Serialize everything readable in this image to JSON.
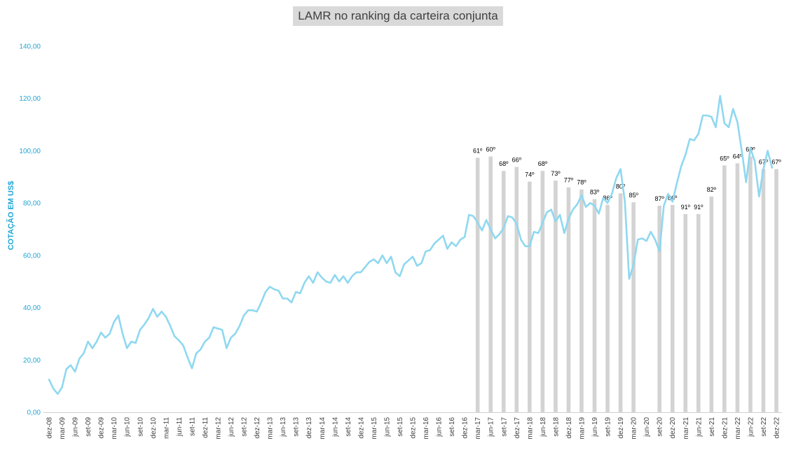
{
  "chart_data": {
    "type": "bar+line",
    "title": "LAMR no ranking da carteira conjunta",
    "ylabel": "COTAÇÃO EM US$",
    "xlabel": "",
    "ylim": [
      0,
      140
    ],
    "yticks": [
      "0,00",
      "20,00",
      "40,00",
      "60,00",
      "80,00",
      "100,00",
      "120,00",
      "140,00"
    ],
    "ytick_values": [
      0,
      20,
      40,
      60,
      80,
      100,
      120,
      140
    ],
    "x_start_month": "dez-08",
    "x_tick_labels": [
      "dez-08",
      "mar-09",
      "jun-09",
      "set-09",
      "dez-09",
      "mar-10",
      "jun-10",
      "set-10",
      "dez-10",
      "mar-11",
      "jun-11",
      "set-11",
      "dez-11",
      "mar-12",
      "jun-12",
      "set-12",
      "dez-12",
      "mar-13",
      "jun-13",
      "set-13",
      "dez-13",
      "mar-14",
      "jun-14",
      "set-14",
      "dez-14",
      "mar-15",
      "jun-15",
      "set-15",
      "dez-15",
      "mar-16",
      "jun-16",
      "set-16",
      "dez-16",
      "mar-17",
      "jun-17",
      "set-17",
      "dez-17",
      "mar-18",
      "jun-18",
      "set-18",
      "dez-18",
      "mar-19",
      "jun-19",
      "set-19",
      "dez-19",
      "mar-20",
      "jun-20",
      "set-20",
      "dez-20",
      "mar-21",
      "jun-21",
      "set-21",
      "dez-21",
      "mar-22",
      "jun-22",
      "set-22",
      "dez-22"
    ],
    "line_color": "#8fd8f0",
    "bar_color": "#d3d3d3",
    "line_values": [
      12.5,
      9.0,
      7.0,
      9.5,
      16.5,
      18.0,
      15.5,
      20.5,
      22.5,
      27.0,
      24.5,
      27.0,
      30.5,
      28.5,
      30.0,
      34.5,
      37.0,
      30.0,
      24.5,
      27.0,
      26.5,
      31.5,
      33.5,
      36.0,
      39.5,
      36.5,
      38.5,
      36.5,
      33.0,
      29.0,
      27.5,
      25.5,
      21.0,
      16.8,
      22.5,
      24.0,
      27.0,
      28.5,
      32.5,
      32.0,
      31.5,
      24.5,
      28.5,
      30.0,
      33.0,
      37.0,
      39.0,
      39.0,
      38.5,
      42.0,
      46.0,
      48.0,
      47.0,
      46.5,
      43.5,
      43.5,
      42.0,
      46.0,
      45.5,
      49.5,
      52.0,
      49.5,
      53.5,
      51.5,
      50.0,
      49.5,
      52.5,
      50.0,
      52.0,
      49.5,
      52.0,
      53.5,
      53.5,
      55.5,
      57.5,
      58.5,
      57.0,
      60.0,
      57.0,
      59.5,
      53.5,
      52.0,
      56.5,
      58.0,
      59.5,
      56.0,
      57.0,
      61.5,
      62.0,
      64.5,
      66.0,
      67.5,
      62.5,
      65.0,
      63.5,
      66.0,
      67.0,
      75.5,
      75.0,
      72.5,
      69.5,
      73.5,
      70.0,
      66.5,
      68.0,
      70.5,
      75.0,
      74.5,
      72.0,
      66.0,
      63.5,
      63.5,
      69.0,
      68.5,
      72.5,
      76.5,
      77.5,
      73.0,
      75.5,
      68.5,
      74.0,
      77.5,
      79.5,
      83.0,
      78.5,
      80.0,
      79.0,
      76.0,
      82.0,
      80.0,
      83.5,
      89.5,
      93.0,
      80.5,
      51.0,
      56.5,
      66.0,
      66.5,
      65.5,
      69.0,
      66.0,
      61.5,
      79.0,
      83.5,
      80.5,
      87.5,
      94.0,
      98.5,
      104.5,
      104.0,
      106.5,
      113.5,
      113.5,
      113.0,
      109.0,
      121.0,
      110.5,
      109.0,
      116.0,
      111.0,
      100.0,
      88.0,
      101.0,
      96.0,
      82.5,
      93.0,
      100.0,
      93.5
    ],
    "bars": [
      {
        "month": "mar-17",
        "value": 97.3,
        "label": "61º"
      },
      {
        "month": "jun-17",
        "value": 97.8,
        "label": "60º"
      },
      {
        "month": "set-17",
        "value": 92.3,
        "label": "68º"
      },
      {
        "month": "dez-17",
        "value": 93.8,
        "label": "66º"
      },
      {
        "month": "mar-18",
        "value": 88.2,
        "label": "74º"
      },
      {
        "month": "jun-18",
        "value": 92.3,
        "label": "68º"
      },
      {
        "month": "set-18",
        "value": 88.6,
        "label": "73º"
      },
      {
        "month": "dez-18",
        "value": 86.0,
        "label": "77º"
      },
      {
        "month": "mar-19",
        "value": 85.2,
        "label": "78º"
      },
      {
        "month": "jun-19",
        "value": 81.5,
        "label": "83º"
      },
      {
        "month": "set-19",
        "value": 79.3,
        "label": "86º"
      },
      {
        "month": "dez-19",
        "value": 83.7,
        "label": "80º"
      },
      {
        "month": "mar-20",
        "value": 80.3,
        "label": "85º"
      },
      {
        "month": "set-20",
        "value": 79.0,
        "label": "87º"
      },
      {
        "month": "dez-20",
        "value": 79.3,
        "label": "86º"
      },
      {
        "month": "mar-21",
        "value": 75.8,
        "label": "91º"
      },
      {
        "month": "jun-21",
        "value": 75.8,
        "label": "91º"
      },
      {
        "month": "set-21",
        "value": 82.5,
        "label": "82º"
      },
      {
        "month": "dez-21",
        "value": 94.4,
        "label": "65º"
      },
      {
        "month": "mar-22",
        "value": 95.2,
        "label": "64º"
      },
      {
        "month": "jun-22",
        "value": 97.8,
        "label": "60º"
      },
      {
        "month": "set-22",
        "value": 93.0,
        "label": "67º"
      },
      {
        "month": "dez-22",
        "value": 93.0,
        "label": "67º"
      }
    ],
    "grid": false,
    "legend": "none"
  }
}
